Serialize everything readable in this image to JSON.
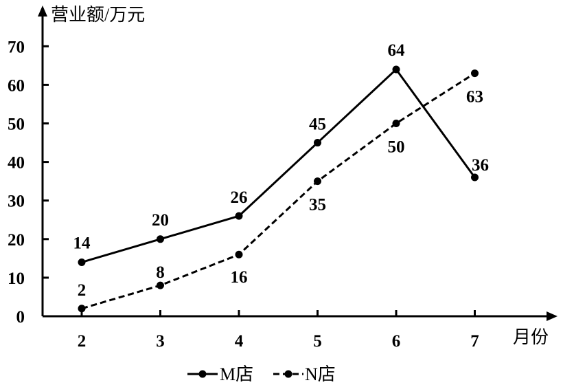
{
  "chart_data": {
    "type": "line",
    "ylabel": "营业额/万元",
    "xlabel": "月份",
    "categories": [
      "2",
      "3",
      "4",
      "5",
      "6",
      "7"
    ],
    "ylim": [
      0,
      70
    ],
    "yticks": [
      0,
      10,
      20,
      30,
      40,
      50,
      60,
      70
    ],
    "grid": false,
    "legend_position": "bottom",
    "series": [
      {
        "name": "M店",
        "line_style": "solid",
        "color": "#000000",
        "values": [
          14,
          20,
          26,
          45,
          64,
          36
        ],
        "labels": [
          "14",
          "20",
          "26",
          "45",
          "64",
          "36"
        ]
      },
      {
        "name": "N店",
        "line_style": "dashed",
        "color": "#000000",
        "values": [
          2,
          8,
          16,
          35,
          50,
          63
        ],
        "labels": [
          "2",
          "8",
          "16",
          "35",
          "50",
          "63"
        ]
      }
    ]
  }
}
